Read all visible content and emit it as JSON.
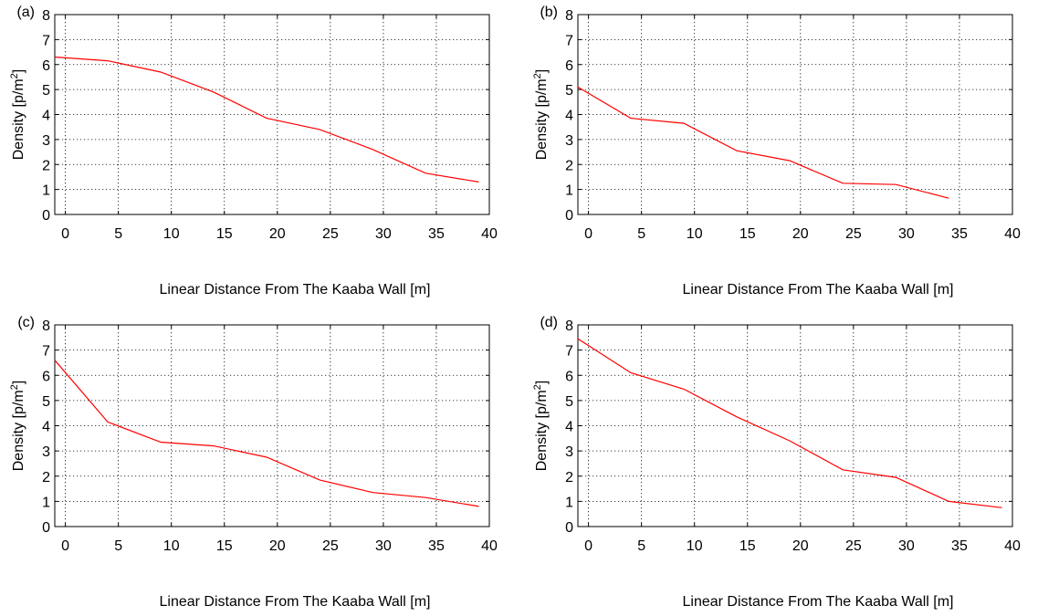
{
  "chart_data": [
    {
      "type": "line",
      "panel_label": "(a)",
      "xlabel": "Linear Distance From The Kaaba Wall [m]",
      "ylabel_main": "Density [p/m",
      "ylabel_sup": "2",
      "ylabel_end": "]",
      "xlim": [
        -1,
        40
      ],
      "ylim": [
        0,
        8
      ],
      "xticks": [
        0,
        5,
        10,
        15,
        20,
        25,
        30,
        35,
        40
      ],
      "yticks": [
        0,
        1,
        2,
        3,
        4,
        5,
        6,
        7,
        8
      ],
      "grid": true,
      "line_color": "#ff0000",
      "series": [
        {
          "x": [
            -1,
            4,
            9,
            14,
            19,
            24,
            29,
            34,
            39
          ],
          "values": [
            6.3,
            6.15,
            5.7,
            4.9,
            3.85,
            3.4,
            2.6,
            1.65,
            1.3
          ]
        }
      ]
    },
    {
      "type": "line",
      "panel_label": "(b)",
      "xlabel": "Linear Distance From The Kaaba Wall [m]",
      "ylabel_main": "Density [p/m",
      "ylabel_sup": "2",
      "ylabel_end": "]",
      "xlim": [
        -1,
        40
      ],
      "ylim": [
        0,
        8
      ],
      "xticks": [
        0,
        5,
        10,
        15,
        20,
        25,
        30,
        35,
        40
      ],
      "yticks": [
        0,
        1,
        2,
        3,
        4,
        5,
        6,
        7,
        8
      ],
      "grid": true,
      "line_color": "#ff0000",
      "series": [
        {
          "x": [
            -1,
            4,
            9,
            14,
            19,
            24,
            29,
            34
          ],
          "values": [
            5.1,
            3.85,
            3.65,
            2.55,
            2.15,
            1.25,
            1.2,
            0.65
          ]
        }
      ]
    },
    {
      "type": "line",
      "panel_label": "(c)",
      "xlabel": "Linear Distance From The Kaaba Wall [m]",
      "ylabel_main": "Density [p/m",
      "ylabel_sup": "2",
      "ylabel_end": "]",
      "xlim": [
        -1,
        40
      ],
      "ylim": [
        0,
        8
      ],
      "xticks": [
        0,
        5,
        10,
        15,
        20,
        25,
        30,
        35,
        40
      ],
      "yticks": [
        0,
        1,
        2,
        3,
        4,
        5,
        6,
        7,
        8
      ],
      "grid": true,
      "line_color": "#ff0000",
      "series": [
        {
          "x": [
            -1,
            4,
            9,
            14,
            19,
            24,
            29,
            34,
            39
          ],
          "values": [
            6.6,
            4.15,
            3.35,
            3.2,
            2.75,
            1.85,
            1.35,
            1.15,
            0.8
          ]
        }
      ]
    },
    {
      "type": "line",
      "panel_label": "(d)",
      "xlabel": "Linear Distance From The Kaaba Wall [m]",
      "ylabel_main": "Density [p/m",
      "ylabel_sup": "2",
      "ylabel_end": "]",
      "xlim": [
        -1,
        40
      ],
      "ylim": [
        0,
        8
      ],
      "xticks": [
        0,
        5,
        10,
        15,
        20,
        25,
        30,
        35,
        40
      ],
      "yticks": [
        0,
        1,
        2,
        3,
        4,
        5,
        6,
        7,
        8
      ],
      "grid": true,
      "line_color": "#ff0000",
      "series": [
        {
          "x": [
            -1,
            4,
            9,
            14,
            19,
            24,
            29,
            34,
            39
          ],
          "values": [
            7.45,
            6.1,
            5.45,
            4.35,
            3.4,
            2.25,
            1.95,
            1.0,
            0.75
          ]
        }
      ]
    }
  ]
}
